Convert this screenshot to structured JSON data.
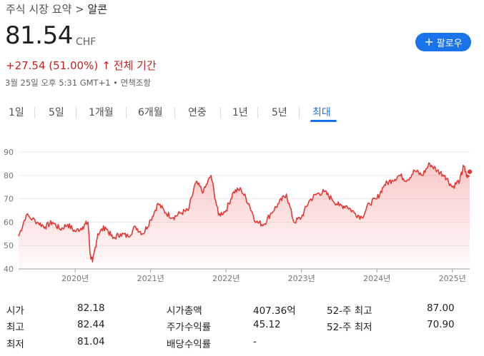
{
  "breadcrumb": {
    "parent": "주식 시장 요약",
    "separator": " > ",
    "current": "알콘"
  },
  "quote": {
    "price": "81.54",
    "currency": "CHF",
    "change": "+27.54 (51.00%)",
    "change_arrow": "↑",
    "period": "전체 기간",
    "timestamp": "3월 25일 오후 5:31 GMT+1 • 면책조항"
  },
  "follow_button": {
    "icon": "plus-icon",
    "label": "팔로우"
  },
  "tabs": [
    "1일",
    "5일",
    "1개월",
    "6개월",
    "연중",
    "1년",
    "5년",
    "최대"
  ],
  "active_tab": "최대",
  "colors": {
    "accent": "#1a73e8",
    "negative": "#c5221f",
    "line": "#e53935"
  },
  "chart_data": {
    "type": "area",
    "y_ticks": [
      "90",
      "80",
      "70",
      "60",
      "50",
      "40"
    ],
    "x_ticks": [
      "2020년",
      "2021년",
      "2022년",
      "2023년",
      "2024년",
      "2025년"
    ],
    "ylim": [
      40,
      90
    ],
    "x": [
      2019.25,
      2019.35,
      2019.5,
      2019.6,
      2019.7,
      2019.8,
      2019.9,
      2020.0,
      2020.1,
      2020.17,
      2020.2,
      2020.23,
      2020.3,
      2020.4,
      2020.5,
      2020.6,
      2020.7,
      2020.8,
      2020.9,
      2021.0,
      2021.1,
      2021.2,
      2021.3,
      2021.4,
      2021.5,
      2021.6,
      2021.7,
      2021.8,
      2021.9,
      2022.0,
      2022.1,
      2022.2,
      2022.3,
      2022.4,
      2022.5,
      2022.6,
      2022.7,
      2022.8,
      2022.9,
      2023.0,
      2023.1,
      2023.2,
      2023.3,
      2023.4,
      2023.5,
      2023.6,
      2023.7,
      2023.8,
      2023.9,
      2024.0,
      2024.1,
      2024.2,
      2024.3,
      2024.4,
      2024.5,
      2024.6,
      2024.7,
      2024.8,
      2024.9,
      2025.0,
      2025.1,
      2025.15,
      2025.2,
      2025.23
    ],
    "values": [
      54,
      63,
      60,
      58,
      60,
      57,
      59,
      56,
      58,
      60,
      46,
      43,
      55,
      58,
      53,
      55,
      54,
      58,
      55,
      61,
      68,
      64,
      62,
      64,
      65,
      77,
      73,
      80,
      63,
      65,
      73,
      74,
      68,
      60,
      59,
      64,
      68,
      72,
      60,
      62,
      69,
      72,
      73,
      70,
      67,
      67,
      64,
      62,
      68,
      70,
      76,
      78,
      80,
      78,
      82,
      80,
      85,
      82,
      80,
      75,
      78,
      84,
      79,
      81.54
    ],
    "previous_close_marker": 81.54
  },
  "stats": {
    "col1": [
      {
        "label": "시가",
        "value": "82.18"
      },
      {
        "label": "최고",
        "value": "82.44"
      },
      {
        "label": "최저",
        "value": "81.04"
      }
    ],
    "col2": [
      {
        "label": "시가총액",
        "value": "407.36억"
      },
      {
        "label": "주가수익률",
        "value": "45.12"
      },
      {
        "label": "배당수익률",
        "value": "-"
      }
    ],
    "col3": [
      {
        "label": "52-주 최고",
        "value": "87.00"
      },
      {
        "label": "52-주 최저",
        "value": "70.90"
      }
    ]
  }
}
